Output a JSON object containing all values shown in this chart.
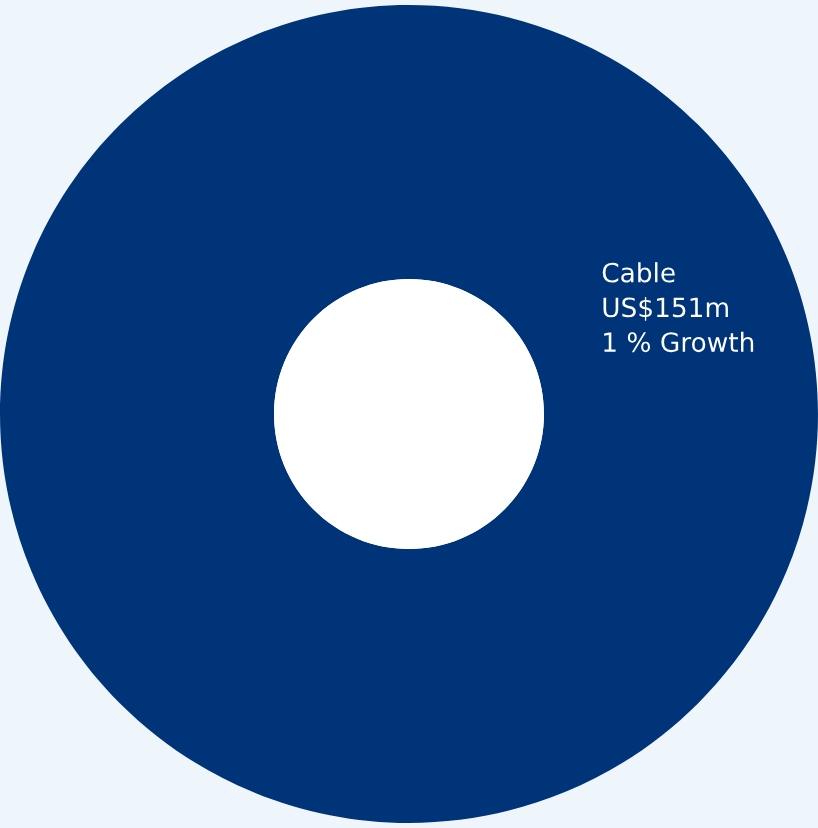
{
  "chart_data": {
    "type": "donut",
    "categories": [
      "Cable"
    ],
    "values": [
      100
    ],
    "colors": [
      "#003478"
    ],
    "value_labels": [
      "US$151m"
    ],
    "annotations": [
      "1 % Growth"
    ]
  }
}
